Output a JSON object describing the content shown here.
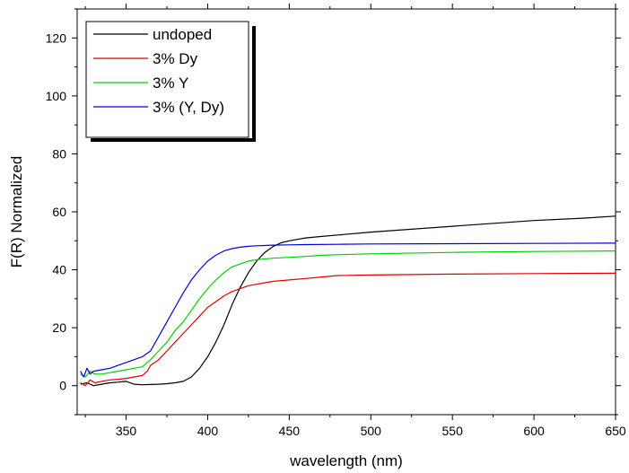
{
  "chart_data": {
    "type": "line",
    "xlabel": "wavelength (nm)",
    "ylabel": "F(R) Normalized",
    "xlim": [
      320,
      650
    ],
    "ylim": [
      -10,
      130
    ],
    "xticks": [
      350,
      400,
      450,
      500,
      550,
      600,
      650
    ],
    "yticks": [
      0,
      20,
      40,
      60,
      80,
      100,
      120
    ],
    "grid": false,
    "legend_position": "top-left",
    "series": [
      {
        "name": "undoped",
        "color": "#000000",
        "x": [
          322,
          326,
          330,
          335,
          340,
          345,
          350,
          355,
          360,
          365,
          370,
          375,
          380,
          385,
          390,
          395,
          400,
          405,
          410,
          415,
          420,
          425,
          430,
          435,
          440,
          445,
          450,
          455,
          460,
          470,
          480,
          500,
          550,
          600,
          630,
          650
        ],
        "y": [
          0.5,
          1,
          0,
          0.5,
          1,
          1.2,
          1.5,
          0.5,
          0.3,
          0.4,
          0.5,
          0.7,
          1,
          1.5,
          3,
          6,
          10,
          15,
          21,
          28,
          34,
          39,
          43,
          46,
          48,
          49.3,
          50,
          50.5,
          51,
          51.5,
          52,
          53,
          55,
          57,
          57.8,
          58.5
        ]
      },
      {
        "name": "3% Dy",
        "color": "#e00000",
        "x": [
          322,
          325,
          328,
          331,
          335,
          340,
          345,
          350,
          355,
          360,
          363,
          365,
          370,
          375,
          380,
          385,
          390,
          395,
          400,
          405,
          410,
          415,
          420,
          425,
          430,
          435,
          440,
          450,
          460,
          470,
          480,
          500,
          550,
          600,
          650
        ],
        "y": [
          1,
          0,
          2,
          1,
          1.5,
          2,
          2.2,
          2.5,
          3,
          3.5,
          5,
          7,
          9,
          12,
          15,
          18,
          21,
          24,
          27,
          29,
          31,
          32.5,
          33.5,
          34.5,
          35,
          35.5,
          36,
          36.5,
          37,
          37.5,
          38,
          38.2,
          38.5,
          38.7,
          38.8
        ]
      },
      {
        "name": "3% Y",
        "color": "#00d000",
        "x": [
          322,
          325,
          328,
          331,
          335,
          340,
          345,
          350,
          355,
          360,
          363,
          365,
          370,
          375,
          380,
          385,
          390,
          395,
          400,
          405,
          410,
          415,
          420,
          425,
          430,
          440,
          450,
          460,
          470,
          480,
          500,
          550,
          600,
          650
        ],
        "y": [
          4,
          3,
          5,
          4,
          4,
          4.5,
          5,
          5.5,
          6,
          6.5,
          8,
          9,
          12,
          15,
          19,
          22,
          26,
          30,
          33.5,
          36.5,
          39,
          41,
          42,
          43,
          43.5,
          44,
          44.3,
          44.6,
          45,
          45.2,
          45.5,
          46,
          46.3,
          46.5
        ]
      },
      {
        "name": "3% (Y, Dy)",
        "color": "#0000e0",
        "x": [
          322,
          324,
          326,
          328,
          330,
          335,
          340,
          345,
          350,
          355,
          360,
          365,
          370,
          375,
          380,
          385,
          390,
          395,
          400,
          405,
          410,
          415,
          420,
          425,
          430,
          435,
          440,
          450,
          460,
          480,
          500,
          550,
          600,
          650
        ],
        "y": [
          5,
          3,
          6,
          4,
          5,
          5.5,
          6,
          7,
          8,
          9,
          10,
          12,
          17,
          22,
          27,
          32,
          36.5,
          40,
          43,
          45,
          46.5,
          47.3,
          47.8,
          48.1,
          48.3,
          48.4,
          48.5,
          48.6,
          48.7,
          48.8,
          48.9,
          49,
          49.1,
          49.2
        ]
      }
    ]
  }
}
